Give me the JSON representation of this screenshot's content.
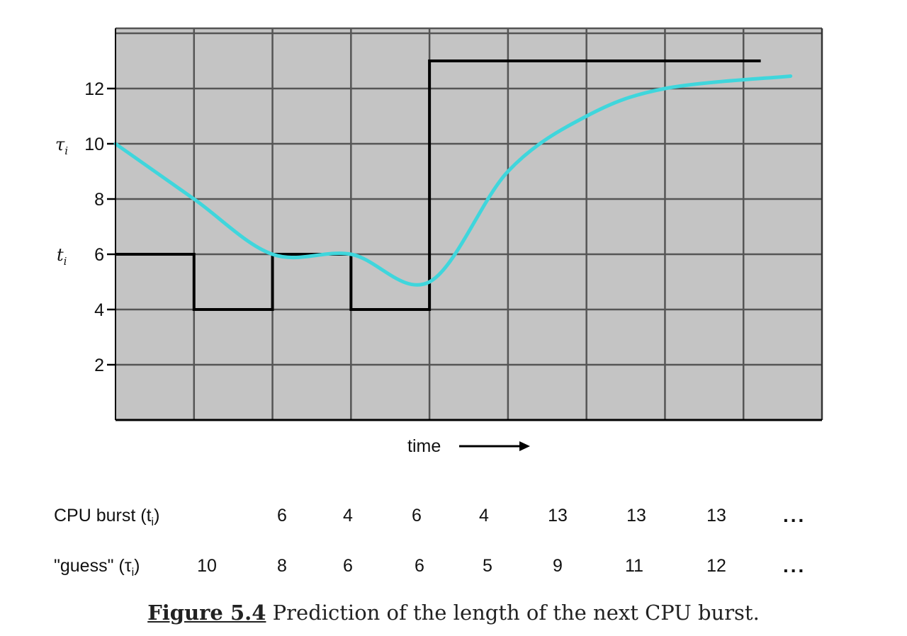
{
  "chart_data": {
    "type": "line",
    "ylim": [
      0,
      14
    ],
    "y_ticks": [
      2,
      4,
      6,
      8,
      10,
      12
    ],
    "x_categories": 9,
    "grid": true,
    "xlabel": "time",
    "y_symbol_tau": "τ",
    "y_symbol_t": "t",
    "y_symbol_sub": "i",
    "series": [
      {
        "name": "CPU burst",
        "style": "step",
        "color": "#000000",
        "values": [
          6,
          4,
          6,
          4,
          13,
          13,
          13
        ]
      },
      {
        "name": "guess",
        "style": "smooth",
        "color": "#3fd6dc",
        "values": [
          10,
          8,
          6,
          6,
          5,
          9,
          11,
          12
        ]
      }
    ]
  },
  "table": {
    "burst_label": "CPU burst (t",
    "burst_label_sub": "i",
    "burst_label_end": ")",
    "guess_label": "\"guess\" (τ",
    "guess_label_sub": "i",
    "guess_label_end": ")",
    "burst_values": [
      "6",
      "4",
      "6",
      "4",
      "13",
      "13",
      "13"
    ],
    "guess_values": [
      "10",
      "8",
      "6",
      "6",
      "5",
      "9",
      "11",
      "12"
    ],
    "ellipsis": "..."
  },
  "caption": {
    "figure_number": "Figure 5.4",
    "text": " Prediction of the length of the next CPU burst."
  }
}
